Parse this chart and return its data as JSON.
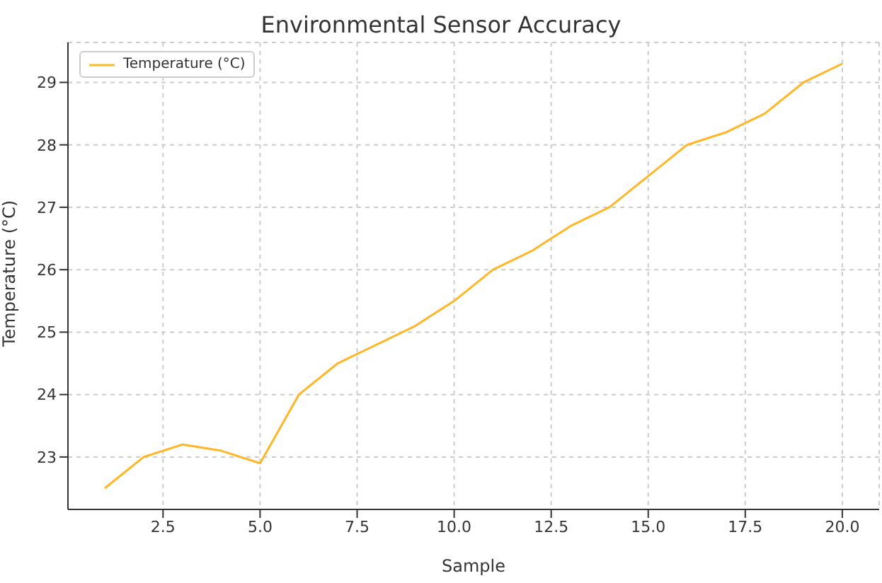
{
  "chart_data": {
    "type": "line",
    "title": "Environmental Sensor Accuracy",
    "xlabel": "Sample",
    "ylabel": "Temperature (°C)",
    "x": [
      1,
      2,
      3,
      4,
      5,
      6,
      7,
      8,
      9,
      10,
      11,
      12,
      13,
      14,
      15,
      16,
      17,
      18,
      19,
      20
    ],
    "series": [
      {
        "name": "Temperature (°C)",
        "color": "#ffb627",
        "values": [
          22.5,
          23.0,
          23.2,
          23.1,
          22.9,
          24.0,
          24.5,
          24.8,
          25.1,
          25.5,
          26.0,
          26.3,
          26.7,
          27.0,
          27.5,
          28.0,
          28.2,
          28.5,
          29.0,
          29.3
        ]
      }
    ],
    "xlim": [
      0.05,
      20.95
    ],
    "xticks": [
      {
        "value": 2.5,
        "label": "2.5"
      },
      {
        "value": 5,
        "label": "5.0"
      },
      {
        "value": 7.5,
        "label": "7.5"
      },
      {
        "value": 10,
        "label": "10.0"
      },
      {
        "value": 12.5,
        "label": "12.5"
      },
      {
        "value": 15,
        "label": "15.0"
      },
      {
        "value": 17.5,
        "label": "17.5"
      },
      {
        "value": 20,
        "label": "20.0"
      }
    ],
    "ylim": [
      22.16,
      29.64
    ],
    "yticks": [
      23,
      24,
      25,
      26,
      27,
      28,
      29
    ],
    "grid": true,
    "legend": "top left",
    "marker": "none",
    "line_style": "solid"
  }
}
